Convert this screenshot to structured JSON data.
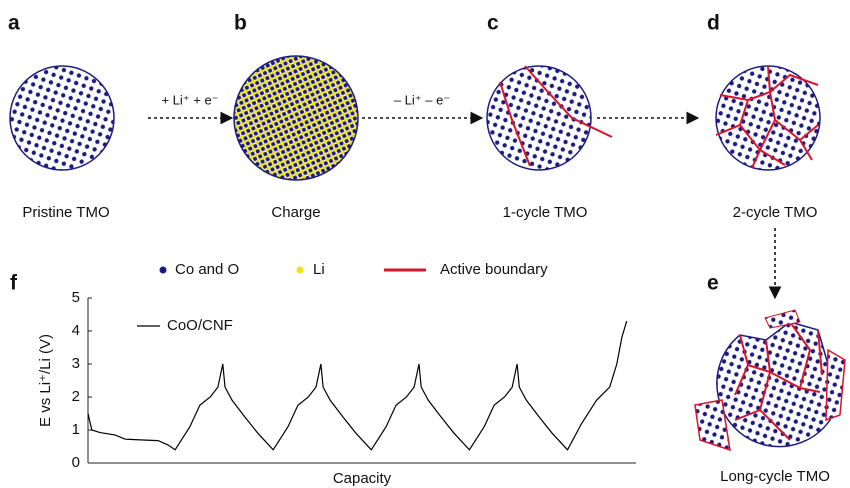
{
  "panels": [
    {
      "letter": "a",
      "caption": "Pristine TMO"
    },
    {
      "letter": "b",
      "caption": "Charge"
    },
    {
      "letter": "c",
      "caption": "1-cycle TMO"
    },
    {
      "letter": "d",
      "caption": "2-cycle TMO"
    },
    {
      "letter": "e",
      "caption": "Long-cycle TMO"
    },
    {
      "letter": "f"
    }
  ],
  "arrows": [
    {
      "label": "+ Li⁺ + e⁻"
    },
    {
      "label": "– Li⁺ – e⁻"
    }
  ],
  "legend": [
    {
      "label": "Co and O",
      "color": "#1c1c80"
    },
    {
      "label": "Li",
      "color": "#f2e21a"
    },
    {
      "label": "Active boundary",
      "color": "#d9142b"
    }
  ],
  "chart_data": {
    "type": "line",
    "xlabel": "Capacity",
    "ylabel": "E vs Li⁺/Li (V)",
    "xlim": [
      0,
      100
    ],
    "ylim": [
      0,
      5
    ],
    "yticks": [
      0,
      1,
      2,
      3,
      4,
      5
    ],
    "series": [
      {
        "name": "CoO/CNF",
        "color": "#000000",
        "x": [
          0,
          0.7,
          2.2,
          4.9,
          6.8,
          9.5,
          12.8,
          14.6,
          15.9,
          18.6,
          20.4,
          22.3,
          23.7,
          24.6,
          25.0,
          26.3,
          28.6,
          31.0,
          33.8,
          36.5,
          38.3,
          40.2,
          41.6,
          42.5,
          42.9,
          44.2,
          46.5,
          48.9,
          51.7,
          54.4,
          56.2,
          58.1,
          59.5,
          60.4,
          60.8,
          62.1,
          64.4,
          66.8,
          69.6,
          72.3,
          74.1,
          76.0,
          77.4,
          78.3,
          78.7,
          80.0,
          82.3,
          84.7,
          87.5,
          90.1,
          92.8,
          95.2,
          96.5,
          97.4,
          98.3
        ],
        "values": [
          1.5,
          1.0,
          0.92,
          0.85,
          0.72,
          0.7,
          0.68,
          0.55,
          0.4,
          1.1,
          1.75,
          2.0,
          2.3,
          3.0,
          2.3,
          1.9,
          1.4,
          0.9,
          0.4,
          1.1,
          1.75,
          2.0,
          2.3,
          3.0,
          2.3,
          1.9,
          1.4,
          0.9,
          0.4,
          1.1,
          1.75,
          2.0,
          2.3,
          3.0,
          2.3,
          1.9,
          1.4,
          0.9,
          0.4,
          1.1,
          1.75,
          2.0,
          2.3,
          3.0,
          2.3,
          1.9,
          1.4,
          0.9,
          0.4,
          1.2,
          1.9,
          2.3,
          3.0,
          3.8,
          4.3
        ]
      }
    ]
  }
}
